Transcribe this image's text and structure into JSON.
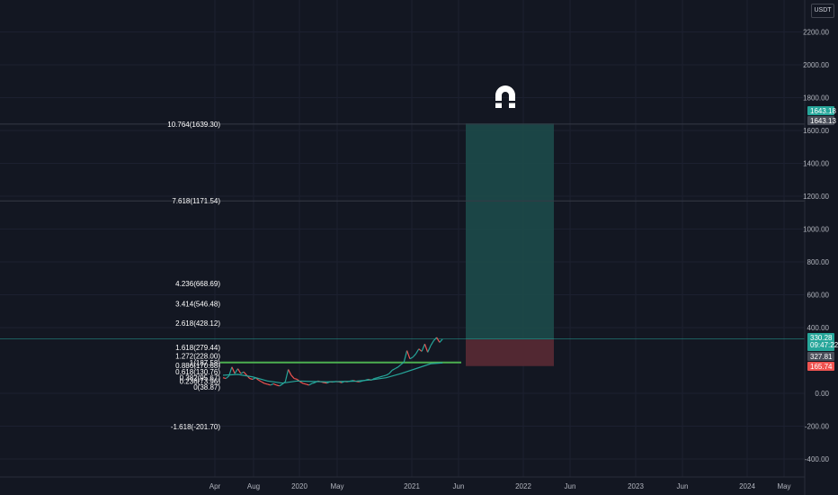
{
  "currency": "USDT",
  "colors": {
    "background": "#131722",
    "grid": "#1c2030",
    "profit_zone": "#1d4a4a",
    "loss_zone": "#5a2a34",
    "fib_line": "#2a2e39",
    "horizontal_level": "#4caf50",
    "ema_line": "#26a69a",
    "candle_up": "#26a69a",
    "candle_down": "#ef5350",
    "current_price_line": "#26a69a",
    "target_tag": "#26a69a",
    "stop_tag": "#ef5350"
  },
  "price_axis": {
    "ticks": [
      "2200.00",
      "2000.00",
      "1800.00",
      "1600.00",
      "1400.00",
      "1200.00",
      "1000.00",
      "800.00",
      "600.00",
      "400.00",
      "0.00",
      "-200.00",
      "-400.00"
    ]
  },
  "time_axis": {
    "labels": [
      "Apr",
      "Aug",
      "2020",
      "May",
      "2021",
      "Jun",
      "2022",
      "Jun",
      "2023",
      "Jun",
      "2024",
      "May"
    ]
  },
  "fib_levels": [
    {
      "label": "10.764(1639.30)",
      "ratio": 10.764,
      "price": 1639.3
    },
    {
      "label": "7.618(1171.54)",
      "ratio": 7.618,
      "price": 1171.54
    },
    {
      "label": "4.236(668.69)",
      "ratio": 4.236,
      "price": 668.69
    },
    {
      "label": "3.414(546.48)",
      "ratio": 3.414,
      "price": 546.48
    },
    {
      "label": "2.618(428.12)",
      "ratio": 2.618,
      "price": 428.12
    },
    {
      "label": "1.618(279.44)",
      "ratio": 1.618,
      "price": 279.44
    },
    {
      "label": "1.272(228.00)",
      "ratio": 1.272,
      "price": 228.0
    },
    {
      "label": "1(187.58)",
      "ratio": 1,
      "price": 187.58
    },
    {
      "label": "0.886(170.68)",
      "ratio": 0.886,
      "price": 170.68
    },
    {
      "label": "0.618(130.76)",
      "ratio": 0.618,
      "price": 130.76
    },
    {
      "label": "0.382(95.67)",
      "ratio": 0.382,
      "price": 95.67
    },
    {
      "label": "0.236(73.96)",
      "ratio": 0.236,
      "price": 73.96
    },
    {
      "label": "0(38.87)",
      "ratio": 0,
      "price": 38.87
    },
    {
      "label": "-1.618(-201.70)",
      "ratio": -1.618,
      "price": -201.7
    }
  ],
  "price_tags": {
    "target_top": "1643.18",
    "target_bottom": "1643.13",
    "current_price": "330.28",
    "countdown": "09:47:22",
    "entry": "327.81",
    "stop": "165.74"
  },
  "chart_data": {
    "type": "line",
    "title": "",
    "ylim": [
      -460,
      2420
    ],
    "grid": true,
    "price_series": {
      "name": "",
      "points": [
        [
          0,
          95
        ],
        [
          3,
          90
        ],
        [
          6,
          105
        ],
        [
          9,
          160
        ],
        [
          12,
          120
        ],
        [
          15,
          150
        ],
        [
          18,
          120
        ],
        [
          21,
          130
        ],
        [
          24,
          110
        ],
        [
          27,
          90
        ],
        [
          30,
          85
        ],
        [
          33,
          95
        ],
        [
          36,
          80
        ],
        [
          39,
          70
        ],
        [
          42,
          60
        ],
        [
          45,
          55
        ],
        [
          48,
          50
        ],
        [
          51,
          58
        ],
        [
          54,
          50
        ],
        [
          57,
          45
        ],
        [
          60,
          55
        ],
        [
          63,
          70
        ],
        [
          66,
          145
        ],
        [
          69,
          110
        ],
        [
          72,
          90
        ],
        [
          75,
          85
        ],
        [
          78,
          70
        ],
        [
          81,
          60
        ],
        [
          84,
          55
        ],
        [
          87,
          50
        ],
        [
          90,
          60
        ],
        [
          93,
          65
        ],
        [
          96,
          75
        ],
        [
          99,
          70
        ],
        [
          102,
          65
        ],
        [
          105,
          62
        ],
        [
          108,
          70
        ],
        [
          111,
          68
        ],
        [
          114,
          72
        ],
        [
          117,
          70
        ],
        [
          120,
          65
        ],
        [
          123,
          72
        ],
        [
          126,
          70
        ],
        [
          129,
          75
        ],
        [
          132,
          78
        ],
        [
          135,
          72
        ],
        [
          138,
          70
        ],
        [
          141,
          75
        ],
        [
          144,
          80
        ],
        [
          147,
          85
        ],
        [
          150,
          80
        ],
        [
          153,
          90
        ],
        [
          156,
          95
        ],
        [
          159,
          100
        ],
        [
          162,
          105
        ],
        [
          165,
          110
        ],
        [
          168,
          120
        ],
        [
          171,
          140
        ],
        [
          174,
          150
        ],
        [
          177,
          160
        ],
        [
          180,
          175
        ],
        [
          183,
          190
        ],
        [
          186,
          260
        ],
        [
          189,
          210
        ],
        [
          192,
          220
        ],
        [
          195,
          240
        ],
        [
          198,
          270
        ],
        [
          201,
          255
        ],
        [
          204,
          300
        ],
        [
          207,
          250
        ],
        [
          210,
          290
        ],
        [
          213,
          320
        ],
        [
          216,
          340
        ],
        [
          219,
          310
        ],
        [
          222,
          330.28
        ]
      ]
    },
    "ema_series": {
      "name": "",
      "points": [
        [
          0,
          110
        ],
        [
          15,
          115
        ],
        [
          30,
          100
        ],
        [
          45,
          75
        ],
        [
          60,
          62
        ],
        [
          75,
          75
        ],
        [
          90,
          72
        ],
        [
          105,
          70
        ],
        [
          120,
          72
        ],
        [
          135,
          74
        ],
        [
          150,
          82
        ],
        [
          165,
          95
        ],
        [
          180,
          120
        ],
        [
          195,
          150
        ],
        [
          210,
          180
        ],
        [
          222,
          185
        ]
      ]
    },
    "levels": {
      "horizontal_support": 187.58,
      "current_price": 330.28,
      "target": 1643.18,
      "entry": 327.81,
      "stop": 165.74
    },
    "position_tool": {
      "x_start": 226,
      "x_end": 326,
      "entry": 327.81,
      "target": 1643.18,
      "stop": 165.74
    }
  }
}
